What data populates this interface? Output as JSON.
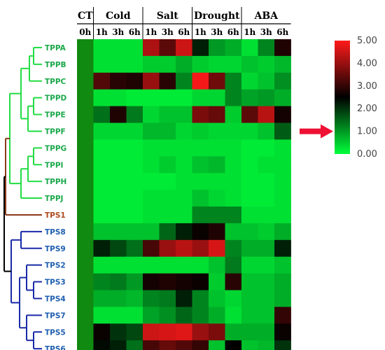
{
  "chart_data": {
    "type": "heatmap",
    "title": "",
    "groups": [
      {
        "name": "CT",
        "subs": [
          "0h"
        ]
      },
      {
        "name": "Cold",
        "subs": [
          "1h",
          "3h",
          "6h"
        ]
      },
      {
        "name": "Salt",
        "subs": [
          "1h",
          "3h",
          "6h"
        ]
      },
      {
        "name": "Drought",
        "subs": [
          "1h",
          "3h",
          "6h"
        ]
      },
      {
        "name": "ABA",
        "subs": [
          "1h",
          "3h",
          "6h"
        ]
      }
    ],
    "rows": [
      "TPPA",
      "TPPB",
      "TPPC",
      "TPPD",
      "TPPE",
      "TPPF",
      "TPPG",
      "TPPI",
      "TPPH",
      "TPPJ",
      "TPS1",
      "TPS8",
      "TPS9",
      "TPS2",
      "TPS3",
      "TPS4",
      "TPS7",
      "TPS5",
      "TPS6"
    ],
    "row_colors": {
      "TPPA": "#1aa84a",
      "TPPB": "#1aa84a",
      "TPPC": "#1aa84a",
      "TPPD": "#1aa84a",
      "TPPE": "#1aa84a",
      "TPPF": "#1aa84a",
      "TPPG": "#1aa84a",
      "TPPI": "#1aa84a",
      "TPPH": "#1aa84a",
      "TPPJ": "#1aa84a",
      "TPS1": "#b04a1e",
      "TPS8": "#1f5fb0",
      "TPS9": "#1f5fb0",
      "TPS2": "#1f5fb0",
      "TPS3": "#1f5fb0",
      "TPS4": "#1f5fb0",
      "TPS7": "#1f5fb0",
      "TPS5": "#1f5fb0",
      "TPS6": "#1f5fb0"
    },
    "values": [
      [
        1.0,
        0.3,
        0.3,
        0.3,
        4.2,
        3.4,
        4.5,
        2.2,
        1.0,
        0.8,
        0.3,
        1.2,
        2.8
      ],
      [
        1.0,
        0.3,
        0.3,
        0.3,
        0.5,
        0.5,
        0.8,
        0.5,
        0.4,
        0.4,
        0.6,
        0.5,
        0.7
      ],
      [
        1.0,
        3.3,
        2.9,
        2.8,
        4.0,
        2.9,
        1.2,
        4.9,
        3.6,
        1.2,
        0.4,
        0.6,
        1.1
      ],
      [
        1.0,
        0.3,
        0.3,
        0.2,
        0.2,
        0.2,
        0.2,
        0.4,
        0.4,
        1.2,
        0.9,
        1.0,
        0.8
      ],
      [
        1.0,
        1.4,
        2.8,
        1.3,
        0.4,
        0.6,
        0.6,
        3.7,
        3.5,
        0.5,
        3.4,
        4.3,
        2.7
      ],
      [
        1.0,
        0.4,
        0.4,
        0.4,
        0.7,
        0.7,
        0.4,
        0.5,
        0.4,
        0.4,
        0.4,
        0.6,
        1.6
      ],
      [
        1.0,
        0.2,
        0.2,
        0.2,
        0.3,
        0.3,
        0.3,
        0.3,
        0.3,
        0.3,
        0.2,
        0.2,
        0.3
      ],
      [
        1.0,
        0.2,
        0.2,
        0.2,
        0.3,
        0.5,
        0.3,
        0.6,
        0.7,
        0.3,
        0.2,
        0.3,
        0.3
      ],
      [
        1.0,
        0.2,
        0.2,
        0.2,
        0.2,
        0.2,
        0.3,
        0.3,
        0.3,
        0.3,
        0.2,
        0.2,
        0.3
      ],
      [
        1.0,
        0.2,
        0.2,
        0.2,
        0.3,
        0.3,
        0.3,
        0.6,
        0.4,
        0.3,
        0.2,
        0.2,
        0.3
      ],
      [
        1.0,
        0.2,
        0.2,
        0.2,
        0.3,
        0.3,
        0.3,
        1.2,
        1.2,
        1.2,
        0.3,
        0.3,
        0.3
      ],
      [
        1.0,
        0.6,
        0.6,
        0.6,
        0.6,
        1.5,
        2.2,
        2.6,
        2.8,
        0.6,
        0.6,
        0.5,
        0.8
      ],
      [
        1.0,
        2.2,
        1.8,
        1.4,
        3.2,
        4.0,
        4.3,
        4.0,
        4.6,
        1.2,
        0.8,
        0.8,
        2.2
      ],
      [
        1.0,
        0.3,
        0.3,
        0.3,
        0.3,
        0.3,
        0.3,
        0.3,
        0.6,
        1.3,
        0.4,
        0.4,
        0.6
      ],
      [
        1.0,
        1.2,
        1.3,
        1.0,
        2.7,
        2.8,
        2.7,
        2.6,
        0.5,
        2.9,
        0.6,
        0.6,
        0.8
      ],
      [
        1.0,
        0.8,
        0.8,
        0.7,
        1.2,
        1.3,
        2.2,
        1.2,
        0.6,
        0.4,
        0.6,
        0.6,
        0.8
      ],
      [
        1.0,
        0.3,
        0.3,
        0.3,
        0.9,
        1.1,
        1.5,
        1.2,
        0.8,
        0.3,
        0.6,
        0.6,
        3.0
      ],
      [
        1.0,
        2.6,
        2.0,
        1.8,
        4.5,
        4.6,
        4.7,
        4.0,
        3.7,
        0.8,
        0.8,
        0.8,
        2.6
      ],
      [
        1.0,
        2.4,
        2.2,
        1.4,
        3.2,
        3.5,
        3.3,
        3.0,
        0.6,
        2.5,
        0.6,
        0.7,
        2.0
      ]
    ],
    "color_scale": {
      "min": 0,
      "max": 5,
      "ticks": [
        "0.00",
        "1.00",
        "2.00",
        "3.00",
        "4.00",
        "5.00"
      ],
      "colors": [
        "#00ff3a",
        "#000000",
        "#ff1a1a"
      ]
    },
    "marker_value": 1.0,
    "marker_color": "#ee1133",
    "dendrogram_colors": {
      "green": "#22dd44",
      "brown": "#8b3a1a",
      "blue": "#1a2aa8",
      "root": "#000000"
    }
  }
}
